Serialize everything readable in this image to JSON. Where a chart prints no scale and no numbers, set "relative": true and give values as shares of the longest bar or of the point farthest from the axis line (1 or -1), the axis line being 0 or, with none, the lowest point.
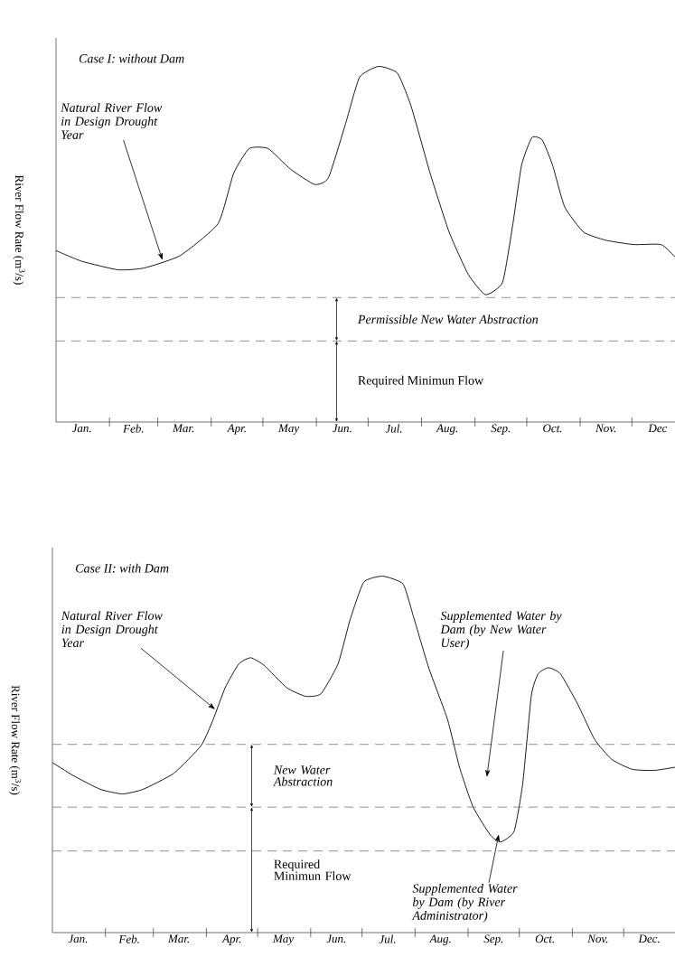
{
  "chart_data": [
    {
      "type": "line",
      "title": "Case I: without Dam",
      "ylabel": "River Flow Rate (m$^{3}$/s)",
      "relative": true,
      "xlim": [
        "--01-01",
        "--12-26"
      ],
      "xticks": [
        {
          "value": "--01-16",
          "label": "Jan."
        },
        {
          "value": "--02-01",
          "label": null
        },
        {
          "value": "--02-15",
          "label": "Feb."
        },
        {
          "value": "--03-01",
          "label": null
        },
        {
          "value": "--03-16",
          "label": "Mar."
        },
        {
          "value": "--04-01",
          "label": null
        },
        {
          "value": "--04-16",
          "label": "Apr."
        },
        {
          "value": "--05-01",
          "label": null
        },
        {
          "value": "--05-16",
          "label": "May"
        },
        {
          "value": "--06-01",
          "label": null
        },
        {
          "value": "--06-16",
          "label": "Jun."
        },
        {
          "value": "--07-01",
          "label": null
        },
        {
          "value": "--07-16",
          "label": "Jul."
        },
        {
          "value": "--08-01",
          "label": null
        },
        {
          "value": "--08-16",
          "label": "Aug."
        },
        {
          "value": "--09-01",
          "label": null
        },
        {
          "value": "--09-16",
          "label": "Sep."
        },
        {
          "value": "--10-01",
          "label": null
        },
        {
          "value": "--10-16",
          "label": "Oct."
        },
        {
          "value": "--11-01",
          "label": null
        },
        {
          "value": "--11-16",
          "label": "Nov."
        },
        {
          "value": "--12-01",
          "label": null
        },
        {
          "value": "--12-16",
          "label": "Dec"
        }
      ],
      "series": [
        {
          "color": "#000000",
          "x": [
            "--01-01",
            "--01-16",
            "--02-06",
            "--02-21",
            "--03-14",
            "--04-05",
            "--04-14",
            "--04-23",
            "--05-04",
            "--05-17",
            "--05-31",
            "--06-08",
            "--06-18",
            "--06-26",
            "--07-07",
            "--07-18",
            "--07-26",
            "--08-06",
            "--08-17",
            "--08-28",
            "--09-07",
            "--09-17",
            "--09-23",
            "--09-28",
            "--10-04",
            "--10-10",
            "--10-16",
            "--10-23",
            "--11-03",
            "--11-16",
            "--12-02",
            "--12-18",
            "--12-26"
          ],
          "values": [
            0.482,
            0.452,
            0.428,
            0.433,
            0.468,
            0.558,
            0.699,
            0.769,
            0.769,
            0.711,
            0.668,
            0.687,
            0.84,
            0.969,
            1.0,
            0.981,
            0.887,
            0.699,
            0.534,
            0.416,
            0.358,
            0.393,
            0.558,
            0.722,
            0.8,
            0.793,
            0.722,
            0.605,
            0.534,
            0.511,
            0.499,
            0.499,
            0.464
          ]
        }
      ],
      "ref_lines": [
        {
          "axis": "y",
          "value": 0.35,
          "line_style": "dashed"
        },
        {
          "axis": "y",
          "value": 0.228,
          "line_style": "dashed"
        }
      ],
      "annotations": [
        "Natural River Flow in Design Drought Year",
        "Permissible New Water Abstraction",
        "Required  Minimun Flow"
      ]
    },
    {
      "type": "line",
      "title": "Case II: with Dam",
      "ylabel": "River Flow Rate (m$^{3}$/s)",
      "relative": true,
      "xlim": [
        "--01-01",
        "--12-31"
      ],
      "xticks": [
        {
          "value": "--01-16",
          "label": "Jan."
        },
        {
          "value": "--02-01",
          "label": null
        },
        {
          "value": "--02-15",
          "label": "Feb."
        },
        {
          "value": "--03-01",
          "label": null
        },
        {
          "value": "--03-16",
          "label": "Mar."
        },
        {
          "value": "--04-01",
          "label": null
        },
        {
          "value": "--04-16",
          "label": "Apr."
        },
        {
          "value": "--05-01",
          "label": null
        },
        {
          "value": "--05-16",
          "label": "May"
        },
        {
          "value": "--06-01",
          "label": null
        },
        {
          "value": "--06-16",
          "label": "Jun."
        },
        {
          "value": "--07-01",
          "label": null
        },
        {
          "value": "--07-16",
          "label": "Jul."
        },
        {
          "value": "--08-01",
          "label": null
        },
        {
          "value": "--08-16",
          "label": "Aug."
        },
        {
          "value": "--09-01",
          "label": null
        },
        {
          "value": "--09-16",
          "label": "Sep."
        },
        {
          "value": "--10-01",
          "label": null
        },
        {
          "value": "--10-16",
          "label": "Oct."
        },
        {
          "value": "--11-01",
          "label": null
        },
        {
          "value": "--11-16",
          "label": "Nov."
        },
        {
          "value": "--12-01",
          "label": null
        },
        {
          "value": "--12-16",
          "label": "Dec."
        }
      ],
      "series": [
        {
          "color": "#000000",
          "x": [
            "--01-01",
            "--01-13",
            "--01-29",
            "--02-11",
            "--02-23",
            "--03-13",
            "--03-29",
            "--04-05",
            "--04-12",
            "--04-20",
            "--04-27",
            "--05-05",
            "--05-18",
            "--05-29",
            "--06-07",
            "--06-17",
            "--06-24",
            "--07-02",
            "--07-13",
            "--07-25",
            "--07-31",
            "--08-09",
            "--08-20",
            "--08-27",
            "--09-04",
            "--09-14",
            "--09-20",
            "--09-28",
            "--10-03",
            "--10-08",
            "--10-12",
            "--10-18",
            "--10-25",
            "--11-04",
            "--11-14",
            "--11-24",
            "--12-06",
            "--12-19",
            "--12-31"
          ],
          "values": [
            0.477,
            0.441,
            0.402,
            0.389,
            0.402,
            0.447,
            0.525,
            0.598,
            0.687,
            0.754,
            0.771,
            0.749,
            0.687,
            0.663,
            0.67,
            0.754,
            0.877,
            0.983,
            1.0,
            0.978,
            0.888,
            0.743,
            0.598,
            0.464,
            0.352,
            0.274,
            0.254,
            0.285,
            0.419,
            0.665,
            0.726,
            0.743,
            0.726,
            0.642,
            0.542,
            0.486,
            0.458,
            0.455,
            0.464
          ]
        }
      ],
      "ref_lines": [
        {
          "axis": "y",
          "value": 0.528,
          "line_style": "dashed"
        },
        {
          "axis": "y",
          "value": 0.352,
          "line_style": "dashed"
        },
        {
          "axis": "y",
          "value": 0.229,
          "line_style": "dashed"
        }
      ],
      "annotations": [
        "Natural River Flow in Design Drought Year",
        "Supplemented Water by Dam (by New Water User)",
        "Supplemented Water by Dam (by River Administrator)",
        "New Water Abstraction",
        "Required Minimun Flow"
      ]
    }
  ]
}
